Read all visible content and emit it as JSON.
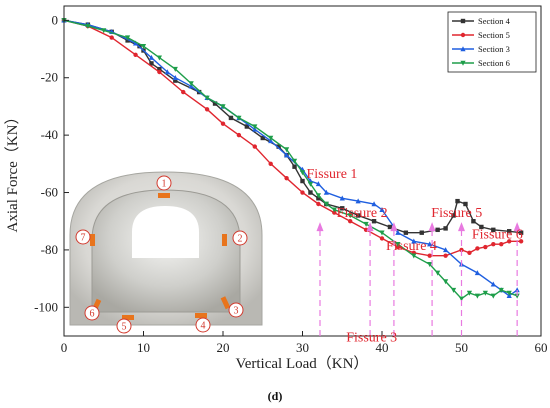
{
  "chart_data": {
    "type": "line",
    "xlabel": "Vertical Load（KN）",
    "ylabel": "Axial Force（KN）",
    "xlim": [
      0,
      60
    ],
    "ylim": [
      -110,
      5
    ],
    "xticks": [
      0,
      10,
      20,
      30,
      40,
      50,
      60
    ],
    "yticks": [
      0,
      -20,
      -40,
      -60,
      -80,
      -100
    ],
    "grid": false,
    "legend_position": "top-right",
    "panel_label": "(d)",
    "series": [
      {
        "name": "Section 4",
        "color": "#333333",
        "marker": "square",
        "points": [
          [
            0,
            0
          ],
          [
            3,
            -1.5
          ],
          [
            6,
            -4
          ],
          [
            8,
            -7
          ],
          [
            9.5,
            -9
          ],
          [
            10,
            -10.5
          ],
          [
            11,
            -15
          ],
          [
            12,
            -17
          ],
          [
            14,
            -21
          ],
          [
            17,
            -25
          ],
          [
            19,
            -29
          ],
          [
            21,
            -34
          ],
          [
            23,
            -37
          ],
          [
            25,
            -41
          ],
          [
            27,
            -44
          ],
          [
            28,
            -47
          ],
          [
            29,
            -51
          ],
          [
            30,
            -56
          ],
          [
            31,
            -60
          ],
          [
            32,
            -62
          ],
          [
            33,
            -64
          ],
          [
            35,
            -65.5
          ],
          [
            37,
            -68
          ],
          [
            39,
            -70
          ],
          [
            41,
            -72
          ],
          [
            43,
            -74
          ],
          [
            45,
            -74
          ],
          [
            47,
            -73
          ],
          [
            48,
            -72.5
          ],
          [
            49,
            -68
          ],
          [
            49.5,
            -63
          ],
          [
            50.5,
            -64
          ],
          [
            51.5,
            -70
          ],
          [
            52.5,
            -72
          ],
          [
            54,
            -73
          ],
          [
            56,
            -73.5
          ],
          [
            57.5,
            -74
          ]
        ]
      },
      {
        "name": "Section 5",
        "color": "#e0262f",
        "marker": "circle",
        "points": [
          [
            0,
            0
          ],
          [
            3,
            -2
          ],
          [
            6,
            -6
          ],
          [
            9,
            -12
          ],
          [
            12,
            -18
          ],
          [
            15,
            -25
          ],
          [
            18,
            -31
          ],
          [
            20,
            -36
          ],
          [
            22,
            -40
          ],
          [
            24,
            -44
          ],
          [
            26,
            -50
          ],
          [
            28,
            -55
          ],
          [
            30,
            -60
          ],
          [
            32,
            -64
          ],
          [
            34,
            -67
          ],
          [
            36,
            -70
          ],
          [
            38,
            -73
          ],
          [
            40,
            -76
          ],
          [
            42,
            -79
          ],
          [
            44,
            -81
          ],
          [
            46,
            -82
          ],
          [
            48,
            -82
          ],
          [
            50,
            -80
          ],
          [
            51,
            -81
          ],
          [
            52,
            -79.5
          ],
          [
            53,
            -79
          ],
          [
            54,
            -78
          ],
          [
            55,
            -78
          ],
          [
            56,
            -77
          ],
          [
            57.5,
            -77
          ]
        ]
      },
      {
        "name": "Section 3",
        "color": "#1f5fe0",
        "marker": "triangle-up",
        "points": [
          [
            0,
            0
          ],
          [
            3,
            -1.5
          ],
          [
            6,
            -4
          ],
          [
            9,
            -8
          ],
          [
            11,
            -13
          ],
          [
            13,
            -18
          ],
          [
            14,
            -20
          ],
          [
            16,
            -23
          ],
          [
            18,
            -27
          ],
          [
            20,
            -30
          ],
          [
            22,
            -34
          ],
          [
            24,
            -38
          ],
          [
            26,
            -42
          ],
          [
            28,
            -47
          ],
          [
            30,
            -52
          ],
          [
            31,
            -56
          ],
          [
            32,
            -57
          ],
          [
            33,
            -60
          ],
          [
            35,
            -62
          ],
          [
            37,
            -63
          ],
          [
            39,
            -64
          ],
          [
            40,
            -66
          ],
          [
            42,
            -74
          ],
          [
            44,
            -77
          ],
          [
            46,
            -78
          ],
          [
            48,
            -80
          ],
          [
            50,
            -85
          ],
          [
            52,
            -88
          ],
          [
            54,
            -92
          ],
          [
            55,
            -94
          ],
          [
            56,
            -96
          ],
          [
            57,
            -94
          ]
        ]
      },
      {
        "name": "Section 6",
        "color": "#1e9e4a",
        "marker": "triangle-down",
        "points": [
          [
            0,
            0
          ],
          [
            3,
            -2
          ],
          [
            5,
            -3.5
          ],
          [
            8,
            -6
          ],
          [
            10,
            -9
          ],
          [
            12,
            -13
          ],
          [
            14,
            -17
          ],
          [
            16,
            -22
          ],
          [
            18,
            -27
          ],
          [
            20,
            -30
          ],
          [
            22,
            -34
          ],
          [
            24,
            -37
          ],
          [
            26,
            -41
          ],
          [
            28,
            -45
          ],
          [
            29,
            -49
          ],
          [
            30,
            -53
          ],
          [
            31,
            -57
          ],
          [
            32,
            -61
          ],
          [
            33,
            -64
          ],
          [
            34,
            -66
          ],
          [
            36,
            -68
          ],
          [
            38,
            -71
          ],
          [
            40,
            -74
          ],
          [
            42,
            -78
          ],
          [
            44,
            -82
          ],
          [
            46,
            -85
          ],
          [
            47,
            -88
          ],
          [
            48,
            -91
          ],
          [
            49,
            -94
          ],
          [
            50,
            -97
          ],
          [
            51,
            -95
          ],
          [
            52,
            -96
          ],
          [
            53,
            -95
          ],
          [
            54,
            -96
          ],
          [
            55,
            -94
          ],
          [
            56,
            -95
          ],
          [
            57,
            -96
          ]
        ]
      }
    ],
    "annotations": [
      {
        "label": "Fissure 1",
        "x": 32.2,
        "label_x": 30.5,
        "label_y": -55
      },
      {
        "label": "Fissure 2",
        "x": 38.5,
        "label_x": 34.3,
        "label_y": -68.5
      },
      {
        "label": "Fissure 3",
        "x": 41.5,
        "label_x": 35.5,
        "label_y": -112
      },
      {
        "label": "Fissure 4",
        "x": 46.3,
        "label_x": 40.5,
        "label_y": -80
      },
      {
        "label": "Fissure 5",
        "x": 50,
        "label_x": 46.2,
        "label_y": -68.5
      },
      {
        "label": "Fissure 6",
        "x": 57,
        "label_x": 51.3,
        "label_y": -76
      }
    ],
    "inset": {
      "description_numbers": [
        "1",
        "2",
        "3",
        "4",
        "5",
        "6",
        "7"
      ]
    }
  },
  "colors": {
    "annotation": "#e0262f",
    "arrow": "#e87ae0"
  }
}
